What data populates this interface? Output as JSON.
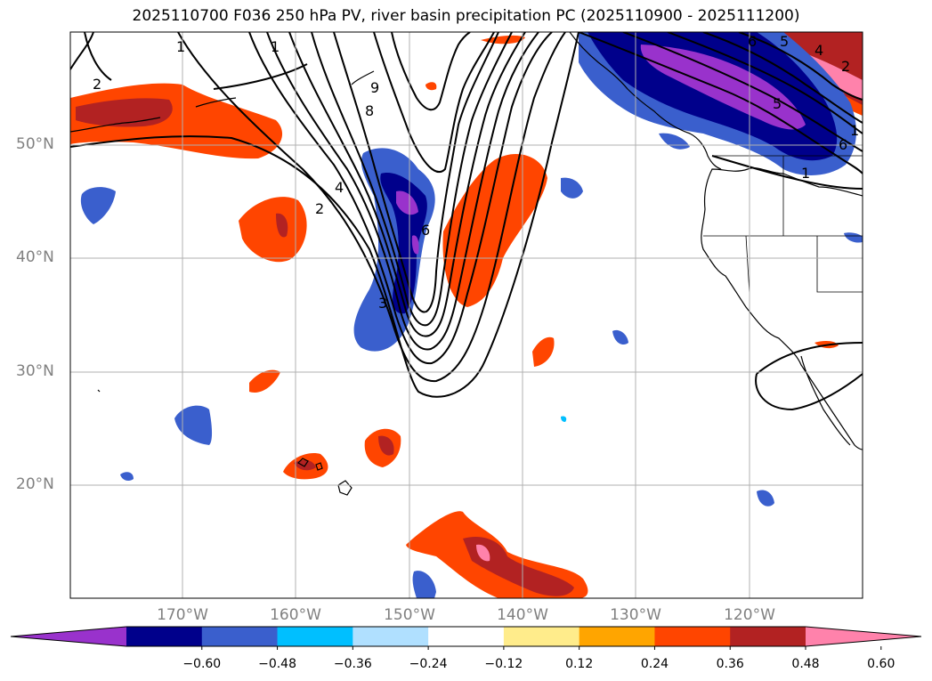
{
  "title": "2025110700 F036 250 hPa PV, river basin precipitation PC (2025110900 - 2025111200)",
  "map": {
    "lon_range": [
      "180°",
      "110°W"
    ],
    "lat_range": [
      "10°N",
      "60°N"
    ],
    "lat_ticks": [
      "50°N",
      "40°N",
      "30°N",
      "20°N"
    ],
    "lon_ticks": [
      "170°W",
      "160°W",
      "150°W",
      "140°W",
      "130°W",
      "120°W"
    ],
    "grid": true,
    "pv_contour_labels": [
      "1",
      "2",
      "4",
      "6",
      "8",
      "9",
      "1",
      "2",
      "3",
      "5",
      "6",
      "6",
      "5",
      "4",
      "2",
      "1",
      "1"
    ]
  },
  "colorbar": {
    "colors": [
      "#9932cc",
      "#00008b",
      "#3a5fcd",
      "#00bfff",
      "#b0e0ff",
      "#ffffff",
      "#ffec8b",
      "#ffa500",
      "#ff4500",
      "#b22222",
      "#ff82ab"
    ],
    "labels": [
      "−0.60",
      "−0.48",
      "−0.36",
      "−0.24",
      "−0.12",
      "0.12",
      "0.24",
      "0.36",
      "0.48",
      "0.60"
    ],
    "extend": "both"
  }
}
